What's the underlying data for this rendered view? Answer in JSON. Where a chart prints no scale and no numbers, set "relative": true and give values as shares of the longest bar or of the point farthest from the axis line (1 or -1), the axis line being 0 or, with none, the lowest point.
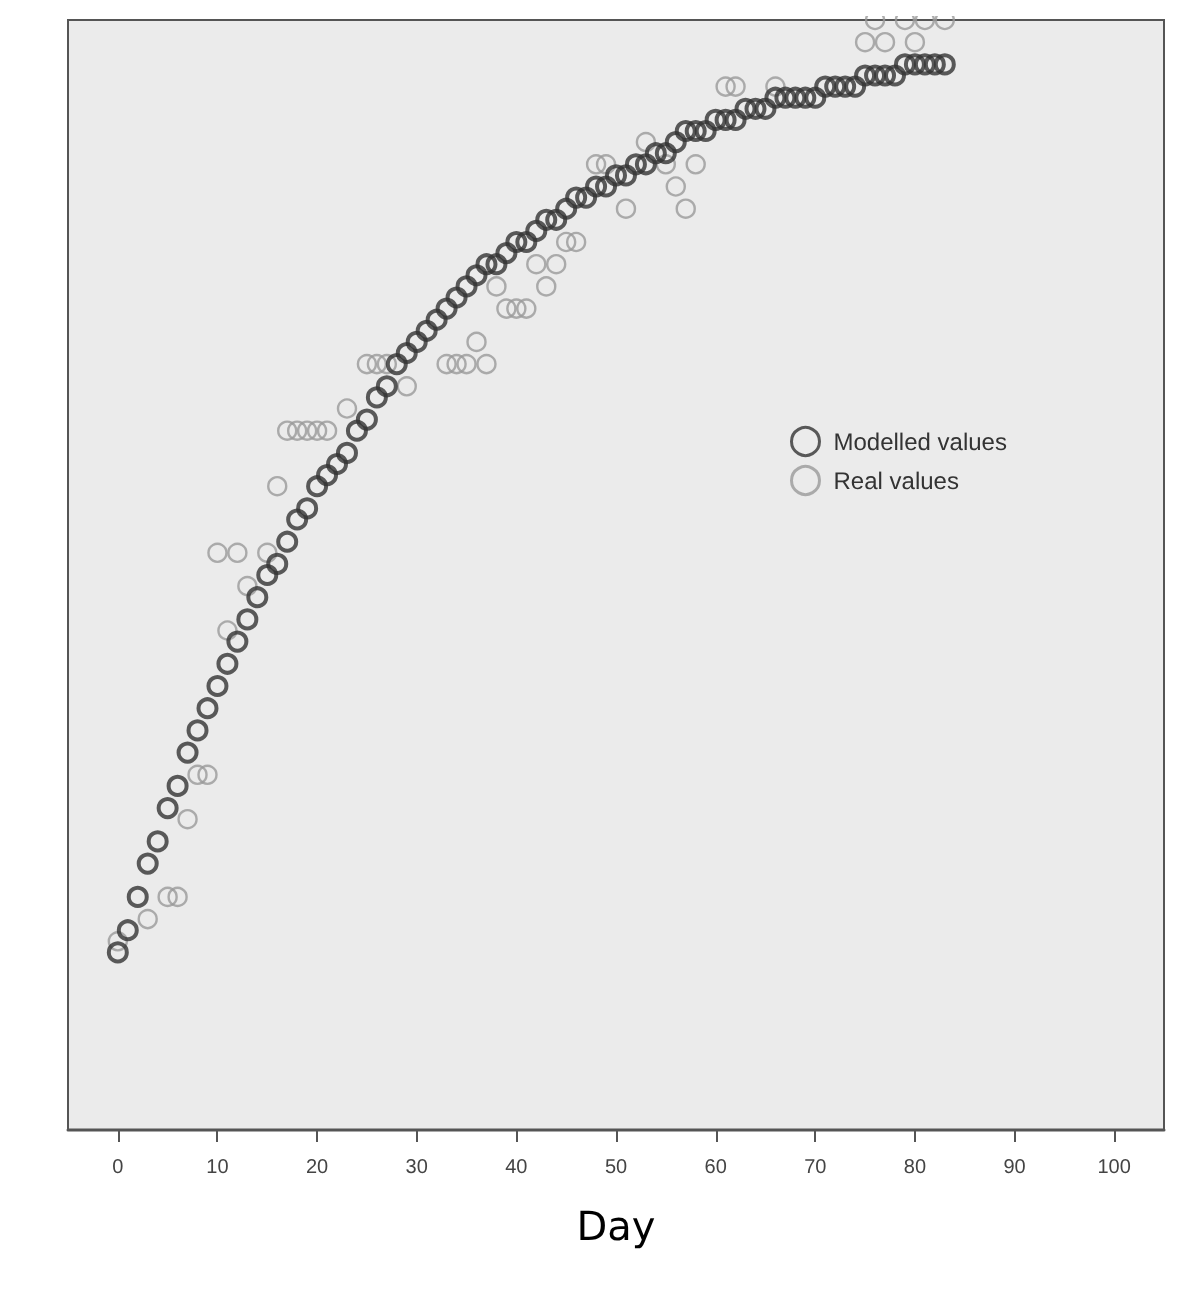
{
  "chart_data": {
    "type": "scatter",
    "xlabel": "Day",
    "relative": true,
    "xlim": [
      -5,
      105
    ],
    "xticks": [
      0,
      10,
      20,
      30,
      40,
      50,
      60,
      70,
      80,
      90,
      100
    ],
    "grid": false,
    "legend": "right",
    "marker": "circle",
    "series": [
      {
        "name": "Modelled values",
        "color": "#333333",
        "x": [
          0,
          1,
          2,
          3,
          4,
          5,
          6,
          7,
          8,
          9,
          10,
          11,
          12,
          13,
          14,
          15,
          16,
          17,
          18,
          19,
          20,
          21,
          22,
          23,
          24,
          25,
          26,
          27,
          28,
          29,
          30,
          31,
          32,
          33,
          34,
          35,
          36,
          37,
          38,
          39,
          40,
          41,
          42,
          43,
          44,
          45,
          46,
          47,
          48,
          49,
          50,
          51,
          52,
          53,
          54,
          55,
          56,
          57,
          58,
          59,
          60,
          61,
          62,
          63,
          64,
          65,
          66,
          67,
          68,
          69,
          70,
          71,
          72,
          73,
          74,
          75,
          76,
          77,
          78,
          79,
          80,
          81,
          82,
          83
        ],
        "values": [
          0.16,
          0.18,
          0.21,
          0.24,
          0.26,
          0.29,
          0.31,
          0.34,
          0.36,
          0.38,
          0.4,
          0.42,
          0.44,
          0.46,
          0.48,
          0.5,
          0.51,
          0.53,
          0.55,
          0.56,
          0.58,
          0.59,
          0.6,
          0.61,
          0.63,
          0.64,
          0.66,
          0.67,
          0.69,
          0.7,
          0.71,
          0.72,
          0.73,
          0.74,
          0.75,
          0.76,
          0.77,
          0.78,
          0.78,
          0.79,
          0.8,
          0.8,
          0.81,
          0.82,
          0.82,
          0.83,
          0.84,
          0.84,
          0.85,
          0.85,
          0.86,
          0.86,
          0.87,
          0.87,
          0.88,
          0.88,
          0.89,
          0.9,
          0.9,
          0.9,
          0.91,
          0.91,
          0.91,
          0.92,
          0.92,
          0.92,
          0.93,
          0.93,
          0.93,
          0.93,
          0.93,
          0.94,
          0.94,
          0.94,
          0.94,
          0.95,
          0.95,
          0.95,
          0.95,
          0.96,
          0.96,
          0.96,
          0.96,
          0.96
        ]
      },
      {
        "name": "Real values",
        "color": "#9a9a9a",
        "x": [
          0,
          3,
          5,
          6,
          7,
          8,
          9,
          10,
          11,
          12,
          13,
          15,
          16,
          17,
          18,
          19,
          20,
          21,
          23,
          25,
          26,
          27,
          29,
          33,
          34,
          35,
          36,
          37,
          38,
          39,
          40,
          41,
          42,
          43,
          44,
          45,
          46,
          48,
          49,
          51,
          53,
          55,
          56,
          57,
          58,
          61,
          62,
          66,
          75,
          76,
          77,
          79,
          80,
          81,
          83
        ],
        "values": [
          0.17,
          0.19,
          0.21,
          0.21,
          0.28,
          0.32,
          0.32,
          0.52,
          0.45,
          0.52,
          0.49,
          0.52,
          0.58,
          0.63,
          0.63,
          0.63,
          0.63,
          0.63,
          0.65,
          0.69,
          0.69,
          0.69,
          0.67,
          0.69,
          0.69,
          0.69,
          0.71,
          0.69,
          0.76,
          0.74,
          0.74,
          0.74,
          0.78,
          0.76,
          0.78,
          0.8,
          0.8,
          0.87,
          0.87,
          0.83,
          0.89,
          0.87,
          0.85,
          0.83,
          0.87,
          0.94,
          0.94,
          0.94,
          0.98,
          1,
          0.98,
          1,
          0.98,
          1,
          1
        ]
      }
    ]
  }
}
